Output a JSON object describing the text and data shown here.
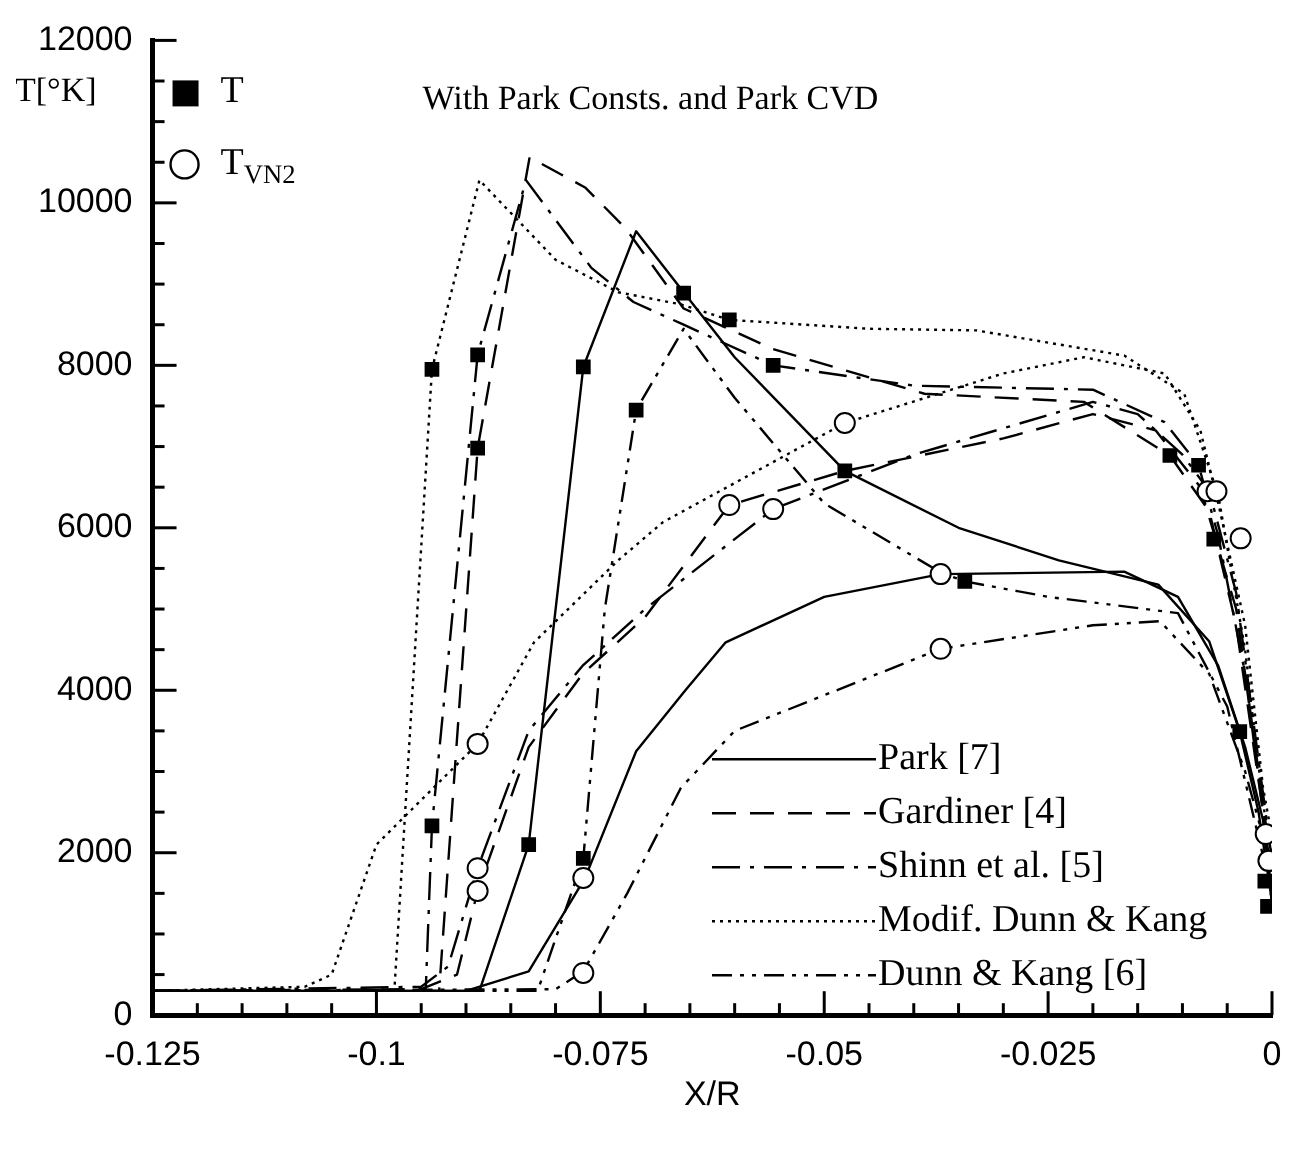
{
  "chart_data": {
    "type": "line",
    "title": "With Park Consts. and Park CVD",
    "xlabel": "X/R",
    "ylabel": "T[°K]",
    "xlim": [
      -0.125,
      0
    ],
    "ylim": [
      0,
      12000
    ],
    "xticks": [
      -0.125,
      {
        "value": -0.12,
        "label": null
      },
      {
        "value": -0.115,
        "label": null
      },
      {
        "value": -0.11,
        "label": null
      },
      {
        "value": -0.105,
        "label": null
      },
      -0.1,
      {
        "value": -0.095,
        "label": null
      },
      {
        "value": -0.09,
        "label": null
      },
      {
        "value": -0.085,
        "label": null
      },
      {
        "value": -0.08,
        "label": null
      },
      -0.075,
      {
        "value": -0.07,
        "label": null
      },
      {
        "value": -0.065,
        "label": null
      },
      {
        "value": -0.06,
        "label": null
      },
      {
        "value": -0.055,
        "label": null
      },
      -0.05,
      {
        "value": -0.045,
        "label": null
      },
      {
        "value": -0.04,
        "label": null
      },
      {
        "value": -0.035,
        "label": null
      },
      {
        "value": -0.03,
        "label": null
      },
      -0.025,
      {
        "value": -0.02,
        "label": null
      },
      {
        "value": -0.015,
        "label": null
      },
      {
        "value": -0.01,
        "label": null
      },
      {
        "value": -0.005,
        "label": null
      },
      0
    ],
    "yticks": [
      0,
      {
        "value": 500,
        "label": null
      },
      {
        "value": 1000,
        "label": null
      },
      {
        "value": 1500,
        "label": null
      },
      2000,
      {
        "value": 2500,
        "label": null
      },
      {
        "value": 3000,
        "label": null
      },
      {
        "value": 3500,
        "label": null
      },
      4000,
      {
        "value": 4500,
        "label": null
      },
      {
        "value": 5000,
        "label": null
      },
      {
        "value": 5500,
        "label": null
      },
      6000,
      {
        "value": 6500,
        "label": null
      },
      {
        "value": 7000,
        "label": null
      },
      {
        "value": 7500,
        "label": null
      },
      8000,
      {
        "value": 8500,
        "label": null
      },
      {
        "value": 9000,
        "label": null
      },
      {
        "value": 9500,
        "label": null
      },
      10000,
      {
        "value": 10500,
        "label": null
      },
      {
        "value": 11000,
        "label": null
      },
      {
        "value": 11500,
        "label": null
      },
      12000
    ],
    "grid": false,
    "legend": "bottom right",
    "marker": "none",
    "series": [
      {
        "name": "Park [7]",
        "line_style": "solid",
        "color": "#000000",
        "x": [
          -0.125,
          -0.0885,
          -0.083,
          -0.0769,
          -0.071,
          -0.0657,
          -0.06,
          -0.0477,
          -0.035,
          -0.0238,
          -0.0127,
          -0.007,
          -0.0036,
          -0.0015,
          0
        ],
        "values": [
          300,
          300,
          2100,
          7980,
          9650,
          8900,
          8100,
          6700,
          6000,
          5600,
          5300,
          4600,
          3490,
          2500,
          1400
        ]
      },
      {
        "line_style": "solid",
        "color": "#000000",
        "x": [
          -0.125,
          -0.09,
          -0.083,
          -0.0767,
          -0.071,
          -0.0655,
          -0.061,
          -0.05,
          -0.037,
          -0.0165,
          -0.0105,
          -0.006,
          -0.003,
          -0.001,
          0
        ],
        "values": [
          300,
          300,
          540,
          1690,
          3250,
          4000,
          4590,
          5150,
          5430,
          5460,
          5150,
          4300,
          3300,
          2400,
          1500
        ]
      },
      {
        "name": "Gardiner [4]",
        "line_style": "dashed",
        "color": "#000000",
        "x": [
          -0.125,
          -0.093,
          -0.0887,
          -0.0829,
          -0.0767,
          -0.0722,
          -0.0657,
          -0.0557,
          -0.0388,
          -0.021,
          -0.0114,
          -0.007,
          -0.004,
          -0.001,
          0
        ],
        "values": [
          300,
          300,
          6980,
          10560,
          10190,
          9690,
          8700,
          8200,
          7650,
          7550,
          6890,
          6200,
          4800,
          2500,
          1350
        ]
      },
      {
        "line_style": "dashed",
        "color": "#000000",
        "x": [
          -0.125,
          -0.095,
          -0.091,
          -0.0887,
          -0.083,
          -0.077,
          -0.07,
          -0.0606,
          -0.0477,
          -0.03,
          -0.02,
          -0.013,
          -0.008,
          -0.004,
          0
        ],
        "values": [
          300,
          320,
          500,
          1530,
          3300,
          4200,
          4900,
          6280,
          6700,
          7100,
          7400,
          7200,
          6500,
          5000,
          1800
        ]
      },
      {
        "name": "Shinn et al. [5]",
        "line_style": "dashdot",
        "color": "#000000",
        "x": [
          -0.125,
          -0.0945,
          -0.0938,
          -0.0887,
          -0.0833,
          -0.076,
          -0.0713,
          -0.0657,
          -0.0557,
          -0.04,
          -0.02,
          -0.012,
          -0.0082,
          -0.006,
          -0.003,
          0
        ],
        "values": [
          300,
          300,
          2330,
          8130,
          10280,
          9200,
          8780,
          8500,
          8000,
          7750,
          7700,
          7300,
          6770,
          5900,
          4200,
          1650
        ]
      },
      {
        "line_style": "dashdot",
        "color": "#000000",
        "x": [
          -0.125,
          -0.095,
          -0.092,
          -0.0887,
          -0.083,
          -0.077,
          -0.07,
          -0.0557,
          -0.04,
          -0.02,
          -0.015,
          -0.01,
          -0.007,
          -0.004,
          0
        ],
        "values": [
          300,
          350,
          600,
          1810,
          3500,
          4300,
          5000,
          6230,
          6900,
          7550,
          7400,
          6900,
          6450,
          5200,
          1900
        ]
      },
      {
        "name": "Modif. Dunn & Kang",
        "line_style": "dotted",
        "color": "#000000",
        "x": [
          -0.125,
          -0.098,
          -0.0938,
          -0.0885,
          -0.08,
          -0.073,
          -0.066,
          -0.0606,
          -0.045,
          -0.033,
          -0.0165,
          -0.0098,
          -0.006,
          -0.003,
          -0.001,
          0
        ],
        "values": [
          300,
          300,
          7950,
          10280,
          9300,
          8900,
          8750,
          8560,
          8450,
          8430,
          8120,
          7650,
          6400,
          4500,
          2600,
          2000
        ]
      },
      {
        "line_style": "dotted",
        "color": "#000000",
        "x": [
          -0.125,
          -0.108,
          -0.105,
          -0.1,
          -0.0887,
          -0.0824,
          -0.073,
          -0.068,
          -0.0477,
          -0.03,
          -0.021,
          -0.012,
          -0.008,
          -0.006,
          -0.003,
          -0.001,
          0
        ],
        "values": [
          300,
          350,
          500,
          2100,
          3340,
          4590,
          5600,
          6070,
          7290,
          7900,
          8100,
          7900,
          7200,
          6300,
          4800,
          2800,
          2200
        ]
      },
      {
        "name": "Dunn & Kang [6]",
        "line_style": "dashdotdot",
        "color": "#000000",
        "x": [
          -0.125,
          -0.082,
          -0.0769,
          -0.0745,
          -0.071,
          -0.0657,
          -0.06,
          -0.05,
          -0.037,
          -0.0343,
          -0.025,
          -0.0105,
          -0.005,
          0
        ],
        "values": [
          300,
          300,
          1930,
          5000,
          7450,
          8450,
          7600,
          6300,
          5450,
          5340,
          5150,
          4950,
          3800,
          1500
        ]
      },
      {
        "line_style": "dashdotdot",
        "color": "#000000",
        "x": [
          -0.125,
          -0.08,
          -0.0769,
          -0.072,
          -0.066,
          -0.06,
          -0.037,
          -0.02,
          -0.0125,
          -0.007,
          -0.003,
          0
        ],
        "values": [
          300,
          320,
          540,
          1500,
          2800,
          3500,
          4510,
          4800,
          4850,
          4200,
          3000,
          1800
        ]
      },
      {
        "name": "T",
        "type": "scatter",
        "marker": "square",
        "color": "#000000",
        "x": [
          -0.0938,
          -0.0887,
          -0.0887,
          -0.0938,
          -0.083,
          -0.0769,
          -0.0769,
          -0.071,
          -0.0657,
          -0.0606,
          -0.0557,
          -0.0477,
          -0.0343,
          -0.0114,
          -0.0082,
          -0.0065,
          -0.0036,
          -0.0008,
          -0.0005
        ],
        "values": [
          7950,
          8130,
          6980,
          2330,
          2100,
          7980,
          1930,
          7450,
          8890,
          8560,
          8000,
          6700,
          5340,
          6890,
          6770,
          5860,
          3490,
          1650,
          1340
        ]
      },
      {
        "name": "T$_{VN2}$",
        "type": "scatter",
        "marker": "circle",
        "color": "#000000",
        "x": [
          -0.0887,
          -0.0887,
          -0.0887,
          -0.0769,
          -0.0769,
          -0.0606,
          -0.0557,
          -0.0477,
          -0.037,
          -0.037,
          -0.0072,
          -0.0062,
          -0.0035,
          -0.0007,
          -0.0004
        ],
        "values": [
          3340,
          1810,
          1530,
          1690,
          520,
          6280,
          6230,
          7290,
          5430,
          4510,
          6450,
          6450,
          5870,
          2230,
          1900
        ]
      }
    ]
  }
}
